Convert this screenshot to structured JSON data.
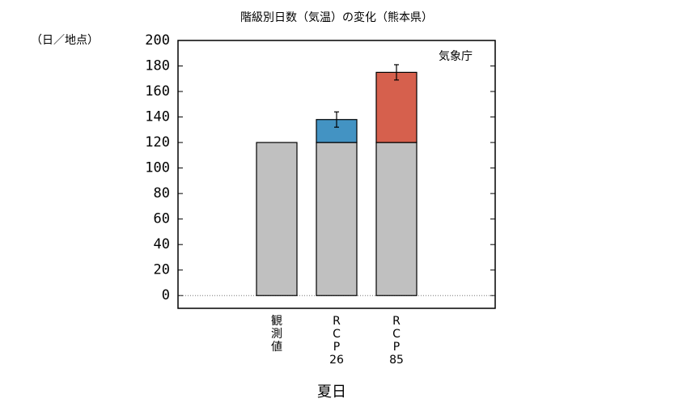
{
  "chart_data": {
    "type": "bar",
    "stacked": true,
    "title": "階級別日数（気温）の変化（熊本県）",
    "y_unit_label": "（日／地点）",
    "annotation": "気象庁",
    "x_label": "夏日",
    "categories": [
      "観測値",
      "RCP26",
      "RCP85"
    ],
    "series": [
      {
        "color": "#c0c0c0",
        "values": [
          120,
          120,
          120
        ]
      },
      {
        "color": [
          "#d9d9d9",
          "#4393c3",
          "#d6604d"
        ],
        "values": [
          null,
          18,
          55
        ],
        "errors": [
          null,
          6,
          6
        ]
      }
    ],
    "ylim": [
      -10,
      200
    ],
    "yticks": [
      0,
      20,
      40,
      60,
      80,
      100,
      120,
      140,
      160,
      180,
      200
    ],
    "zero_line": true
  }
}
